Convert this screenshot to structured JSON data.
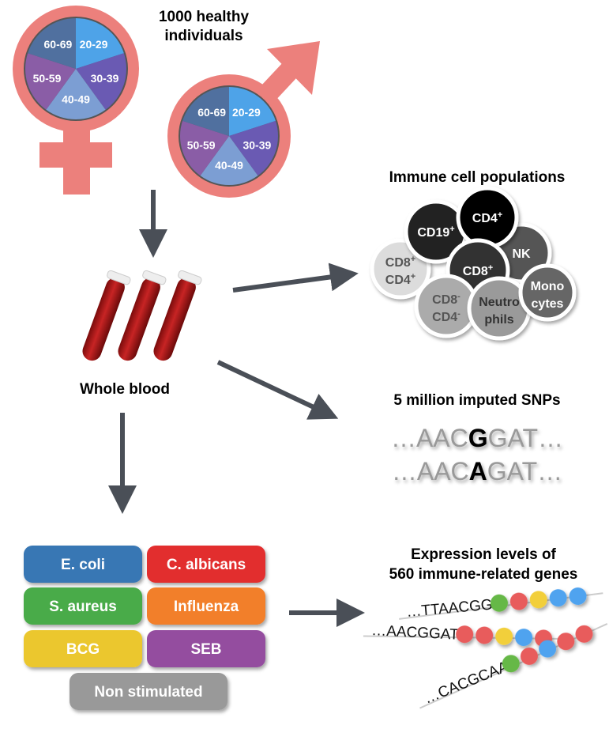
{
  "cohort": {
    "title_line1": "1000 healthy",
    "title_line2": "individuals",
    "age_groups": [
      "20-29",
      "30-39",
      "40-49",
      "50-59",
      "60-69"
    ],
    "age_colors": [
      "#4ea3e8",
      "#6a5ab3",
      "#7c9ed3",
      "#8a5da6",
      "#50709f"
    ],
    "symbol_color": "#ec807c"
  },
  "blood": {
    "label": "Whole blood",
    "tube_color": "#b01c1c"
  },
  "cells": {
    "title": "Immune cell populations",
    "items": [
      {
        "l1": "CD8",
        "s1": "+",
        "l2": "CD4",
        "s2": "+",
        "fill": "#dcdcdc",
        "text": "#555"
      },
      {
        "l1": "CD19",
        "s1": "+",
        "l2": "",
        "s2": "",
        "fill": "#222222",
        "text": "#fff"
      },
      {
        "l1": "NK",
        "s1": "",
        "l2": "",
        "s2": "",
        "fill": "#555555",
        "text": "#fff"
      },
      {
        "l1": "CD4",
        "s1": "+",
        "l2": "",
        "s2": "",
        "fill": "#000000",
        "text": "#fff"
      },
      {
        "l1": "CD8",
        "s1": "+",
        "l2": "",
        "s2": "",
        "fill": "#333333",
        "text": "#fff"
      },
      {
        "l1": "CD8",
        "s1": "-",
        "l2": "CD4",
        "s2": "-",
        "fill": "#ababab",
        "text": "#555"
      },
      {
        "l1": "Neutro",
        "s1": "",
        "l2": "phils",
        "s2": "",
        "fill": "#9a9a9a",
        "text": "#333"
      },
      {
        "l1": "Mono",
        "s1": "",
        "l2": "cytes",
        "s2": "",
        "fill": "#666666",
        "text": "#fff"
      }
    ]
  },
  "snps": {
    "title": "5 million imputed SNPs",
    "rows": [
      {
        "pre": "…AAC",
        "snp": "G",
        "post": "GAT…"
      },
      {
        "pre": "…AAC",
        "snp": "A",
        "post": "GAT…"
      }
    ]
  },
  "stimuli": [
    {
      "label": "E. coli",
      "color": "#3877b4"
    },
    {
      "label": "C. albicans",
      "color": "#e22d2f"
    },
    {
      "label": "S. aureus",
      "color": "#4aab4a"
    },
    {
      "label": "Influenza",
      "color": "#f27f2b"
    },
    {
      "label": "BCG",
      "color": "#ebc72f"
    },
    {
      "label": "SEB",
      "color": "#944e9f"
    },
    {
      "label": "Non stimulated",
      "color": "#999999"
    }
  ],
  "expression": {
    "title_line1": "Expression levels of",
    "title_line2": "560 immune-related genes",
    "rows": [
      {
        "seq": "…TTAACGG",
        "beads": [
          "#66b846",
          "#e85b5b",
          "#f2cf3a",
          "#4fa3ef",
          "#4fa3ef"
        ]
      },
      {
        "seq": "…AACGGAT",
        "beads": [
          "#e85b5b",
          "#e85b5b",
          "#f2cf3a",
          "#4fa3ef",
          "#e85b5b"
        ]
      },
      {
        "seq": "…CACGCAA",
        "beads": [
          "#66b846",
          "#e85b5b",
          "#4fa3ef",
          "#e85b5b",
          "#e85b5b"
        ]
      }
    ]
  }
}
